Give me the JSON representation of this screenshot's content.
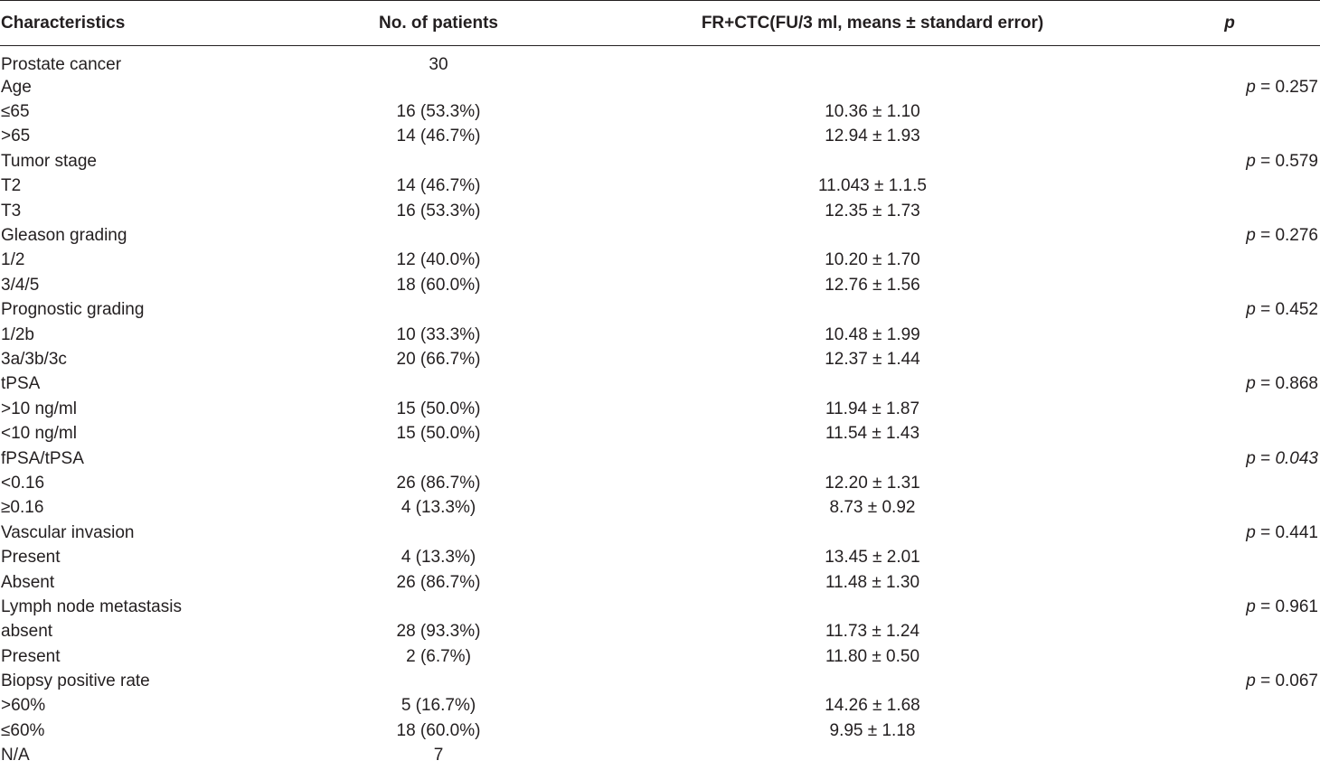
{
  "table": {
    "headers": {
      "characteristics": "Characteristics",
      "patients": "No. of patients",
      "fr_ctc": "FR+CTC(FU/3 ml, means ± standard error)",
      "p": "p"
    },
    "rows": [
      {
        "label": "Prostate cancer",
        "patients": "30",
        "fr_ctc": "",
        "p_value": ""
      },
      {
        "label": "Age",
        "patients": "",
        "fr_ctc": "",
        "p_value": "0.257"
      },
      {
        "label": "≤65",
        "patients": "16 (53.3%)",
        "fr_ctc": "10.36 ± 1.10",
        "p_value": ""
      },
      {
        "label": ">65",
        "patients": "14 (46.7%)",
        "fr_ctc": "12.94 ± 1.93",
        "p_value": ""
      },
      {
        "label": "Tumor stage",
        "patients": "",
        "fr_ctc": "",
        "p_value": "0.579"
      },
      {
        "label": "T2",
        "patients": "14 (46.7%)",
        "fr_ctc": "11.043 ± 1.1.5",
        "p_value": ""
      },
      {
        "label": "T3",
        "patients": "16 (53.3%)",
        "fr_ctc": "12.35 ± 1.73",
        "p_value": ""
      },
      {
        "label": "Gleason grading",
        "patients": "",
        "fr_ctc": "",
        "p_value": "0.276"
      },
      {
        "label": "1/2",
        "patients": "12 (40.0%)",
        "fr_ctc": "10.20 ± 1.70",
        "p_value": ""
      },
      {
        "label": "3/4/5",
        "patients": "18 (60.0%)",
        "fr_ctc": "12.76 ± 1.56",
        "p_value": ""
      },
      {
        "label": "Prognostic grading",
        "patients": "",
        "fr_ctc": "",
        "p_value": "0.452"
      },
      {
        "label": "1/2b",
        "patients": "10 (33.3%)",
        "fr_ctc": "10.48 ± 1.99",
        "p_value": ""
      },
      {
        "label": "3a/3b/3c",
        "patients": "20 (66.7%)",
        "fr_ctc": "12.37 ± 1.44",
        "p_value": ""
      },
      {
        "label": "tPSA",
        "patients": "",
        "fr_ctc": "",
        "p_value": "0.868"
      },
      {
        "label": ">10 ng/ml",
        "patients": "15 (50.0%)",
        "fr_ctc": "11.94 ± 1.87",
        "p_value": ""
      },
      {
        "label": "<10 ng/ml",
        "patients": "15 (50.0%)",
        "fr_ctc": "11.54 ± 1.43",
        "p_value": ""
      },
      {
        "label": "fPSA/tPSA",
        "patients": "",
        "fr_ctc": "",
        "p_value": "0.043",
        "p_italic": true
      },
      {
        "label": "<0.16",
        "patients": "26 (86.7%)",
        "fr_ctc": "12.20 ± 1.31",
        "p_value": ""
      },
      {
        "label": "≥0.16",
        "patients": "4 (13.3%)",
        "fr_ctc": "8.73 ± 0.92",
        "p_value": ""
      },
      {
        "label": "Vascular invasion",
        "patients": "",
        "fr_ctc": "",
        "p_value": "0.441"
      },
      {
        "label": "Present",
        "patients": "4 (13.3%)",
        "fr_ctc": "13.45 ± 2.01",
        "p_value": ""
      },
      {
        "label": "Absent",
        "patients": "26 (86.7%)",
        "fr_ctc": "11.48 ± 1.30",
        "p_value": ""
      },
      {
        "label": "Lymph node metastasis",
        "patients": "",
        "fr_ctc": "",
        "p_value": "0.961"
      },
      {
        "label": "absent",
        "patients": "28 (93.3%)",
        "fr_ctc": "11.73 ± 1.24",
        "p_value": ""
      },
      {
        "label": "Present",
        "patients": "2 (6.7%)",
        "fr_ctc": "11.80 ± 0.50",
        "p_value": ""
      },
      {
        "label": "Biopsy positive rate",
        "patients": "",
        "fr_ctc": "",
        "p_value": "0.067"
      },
      {
        "label": ">60%",
        "patients": "5 (16.7%)",
        "fr_ctc": "14.26 ± 1.68",
        "p_value": ""
      },
      {
        "label": "≤60%",
        "patients": "18 (60.0%)",
        "fr_ctc": "9.95 ± 1.18",
        "p_value": ""
      },
      {
        "label": "N/A",
        "patients": "7",
        "fr_ctc": "",
        "p_value": ""
      }
    ]
  }
}
